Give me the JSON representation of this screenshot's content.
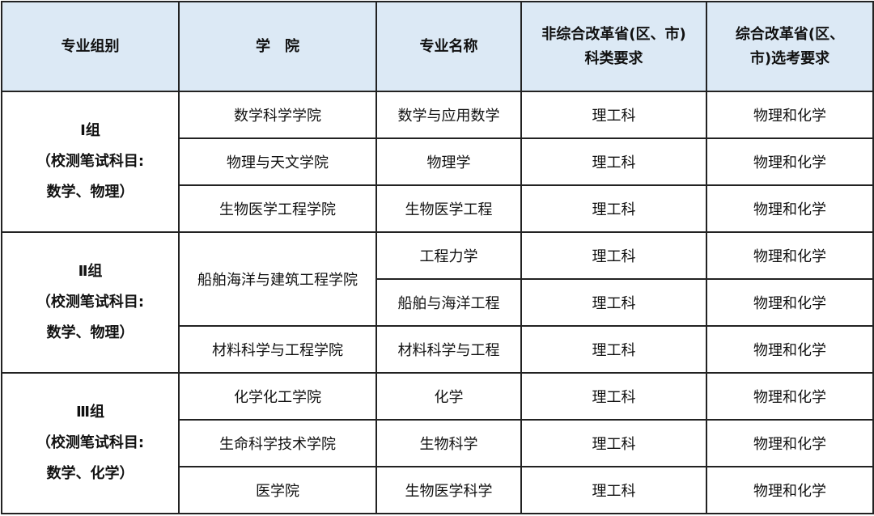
{
  "header": [
    "专业组别",
    "学　院",
    "专业名称",
    "非综合改革省(区、市)\n科类要求",
    "综合改革省(区、\n市)选考要求"
  ],
  "groups": [
    {
      "label": [
        "Ⅰ组",
        "（校测笔试科目:",
        "数学、物理）"
      ],
      "colleges": [
        {
          "name": "数学科学学院",
          "majors": [
            {
              "name": "数学与应用数学",
              "category": "理工科",
              "subjects": "物理和化学"
            }
          ]
        },
        {
          "name": "物理与天文学院",
          "majors": [
            {
              "name": "物理学",
              "category": "理工科",
              "subjects": "物理和化学"
            }
          ]
        },
        {
          "name": "生物医学工程学院",
          "majors": [
            {
              "name": "生物医学工程",
              "category": "理工科",
              "subjects": "物理和化学"
            }
          ]
        }
      ]
    },
    {
      "label": [
        "Ⅱ组",
        "（校测笔试科目:",
        "数学、物理）"
      ],
      "colleges": [
        {
          "name": "船舶海洋与建筑工程学院",
          "majors": [
            {
              "name": "工程力学",
              "category": "理工科",
              "subjects": "物理和化学"
            },
            {
              "name": "船舶与海洋工程",
              "category": "理工科",
              "subjects": "物理和化学"
            }
          ]
        },
        {
          "name": "材料科学与工程学院",
          "majors": [
            {
              "name": "材料科学与工程",
              "category": "理工科",
              "subjects": "物理和化学"
            }
          ]
        }
      ]
    },
    {
      "label": [
        "Ⅲ组",
        "（校测笔试科目:",
        "数学、化学）"
      ],
      "colleges": [
        {
          "name": "化学化工学院",
          "majors": [
            {
              "name": "化学",
              "category": "理工科",
              "subjects": "物理和化学"
            }
          ]
        },
        {
          "name": "生命科学技术学院",
          "majors": [
            {
              "name": "生物科学",
              "category": "理工科",
              "subjects": "物理和化学"
            }
          ]
        },
        {
          "name": "医学院",
          "majors": [
            {
              "name": "生物医学科学",
              "category": "理工科",
              "subjects": "物理和化学"
            }
          ]
        }
      ]
    }
  ]
}
